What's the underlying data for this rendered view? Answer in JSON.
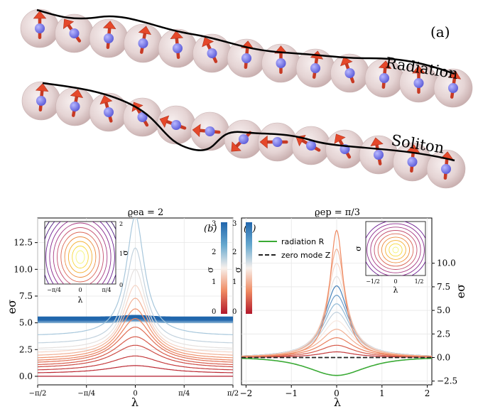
{
  "panel_a": {
    "label": "(a)",
    "rows": [
      {
        "label": "Radiation"
      },
      {
        "label": "Soliton"
      }
    ]
  },
  "panel_b": {
    "title": "ϱea = 2",
    "label": "(b)",
    "colorbar_label": "σ",
    "colorbar_ticks": [
      "0",
      "1",
      "2",
      "3"
    ],
    "inset_ylabel": "σ",
    "inset_xlabel": "λ",
    "inset_xticks": [
      "−π/4",
      "0",
      "π/4"
    ],
    "inset_yticks": [
      "0",
      "1",
      "2"
    ]
  },
  "panel_c": {
    "title": "ϱep = π/3",
    "label": "(c)",
    "colorbar_label": "σ",
    "colorbar_ticks": [
      "0",
      "1",
      "2",
      "3"
    ],
    "legend": [
      {
        "label": "radiation R",
        "color": "#3aaa35",
        "style": "solid"
      },
      {
        "label": "zero mode Z",
        "color": "#222222",
        "style": "dashed"
      }
    ],
    "inset_ylabel": "σ",
    "inset_xlabel": "λ",
    "inset_xticks": [
      "−1/2",
      "0",
      "1/2"
    ]
  },
  "chart_data": [
    {
      "type": "line",
      "xlabel": "λ",
      "ylabel": "eσ",
      "xlim": [
        -1.5708,
        1.5708
      ],
      "ylim": [
        -0.8,
        14.8
      ],
      "xticks": [
        "−π/2",
        "−π/4",
        "0",
        "π/4",
        "π/2"
      ],
      "yticks": [
        "0.0",
        "2.5",
        "5.0",
        "7.5",
        "10.0",
        "12.5"
      ],
      "ytick_values": [
        0,
        2.5,
        5,
        7.5,
        10,
        12.5
      ],
      "series": [
        {
          "sigma": 0.0,
          "peak": 0.0
        },
        {
          "sigma": 0.15,
          "peak": 1.0
        },
        {
          "sigma": 0.3,
          "peak": 1.9
        },
        {
          "sigma": 0.45,
          "peak": 2.9
        },
        {
          "sigma": 0.6,
          "peak": 3.7
        },
        {
          "sigma": 0.75,
          "peak": 4.6
        },
        {
          "sigma": 0.9,
          "peak": 5.4
        },
        {
          "sigma": 1.05,
          "peak": 6.3
        },
        {
          "sigma": 1.2,
          "peak": 7.3
        },
        {
          "sigma": 1.4,
          "peak": 8.5
        },
        {
          "sigma": 1.6,
          "peak": 10.0
        },
        {
          "sigma": 1.8,
          "peak": 12.0
        },
        {
          "sigma": 1.95,
          "peak": 15.0
        }
      ],
      "flat_series": [
        {
          "sigma": 2.2,
          "value": 5.0
        },
        {
          "sigma": 2.5,
          "value": 5.1
        },
        {
          "sigma": 2.8,
          "value": 5.2
        },
        {
          "sigma": 3.0,
          "value": 5.3
        }
      ]
    },
    {
      "type": "line",
      "xlabel": "λ",
      "ylabel": "eσ",
      "xlim": [
        -2.1,
        2.1
      ],
      "ylim": [
        -2.9,
        14.8
      ],
      "xticks": [
        "−2",
        "−1",
        "0",
        "1",
        "2"
      ],
      "xtick_values": [
        -2,
        -1,
        0,
        1,
        2
      ],
      "yticks": [
        "−2.5",
        "0.0",
        "2.5",
        "5.0",
        "7.5",
        "10.0"
      ],
      "ytick_values": [
        -2.5,
        0,
        2.5,
        5,
        7.5,
        10
      ],
      "series": [
        {
          "sigma": 0.3,
          "peak": 0.6
        },
        {
          "sigma": 0.6,
          "peak": 1.3
        },
        {
          "sigma": 0.9,
          "peak": 2.1
        },
        {
          "sigma": 1.2,
          "peak": 3.0
        },
        {
          "sigma": 1.5,
          "peak": 3.9
        },
        {
          "sigma": 1.8,
          "peak": 4.8
        },
        {
          "sigma": 2.1,
          "peak": 5.7
        },
        {
          "sigma": 2.4,
          "peak": 6.6
        },
        {
          "sigma": 2.7,
          "peak": 7.6
        },
        {
          "sigma": 1.6,
          "peak": 8.6
        },
        {
          "sigma": 1.4,
          "peak": 10.0
        },
        {
          "sigma": 1.2,
          "peak": 11.5
        },
        {
          "sigma": 1.0,
          "peak": 13.5
        }
      ],
      "radiation": {
        "name": "radiation R",
        "min": -1.9
      },
      "zero_mode": {
        "name": "zero mode Z",
        "value": 0.0
      }
    }
  ]
}
